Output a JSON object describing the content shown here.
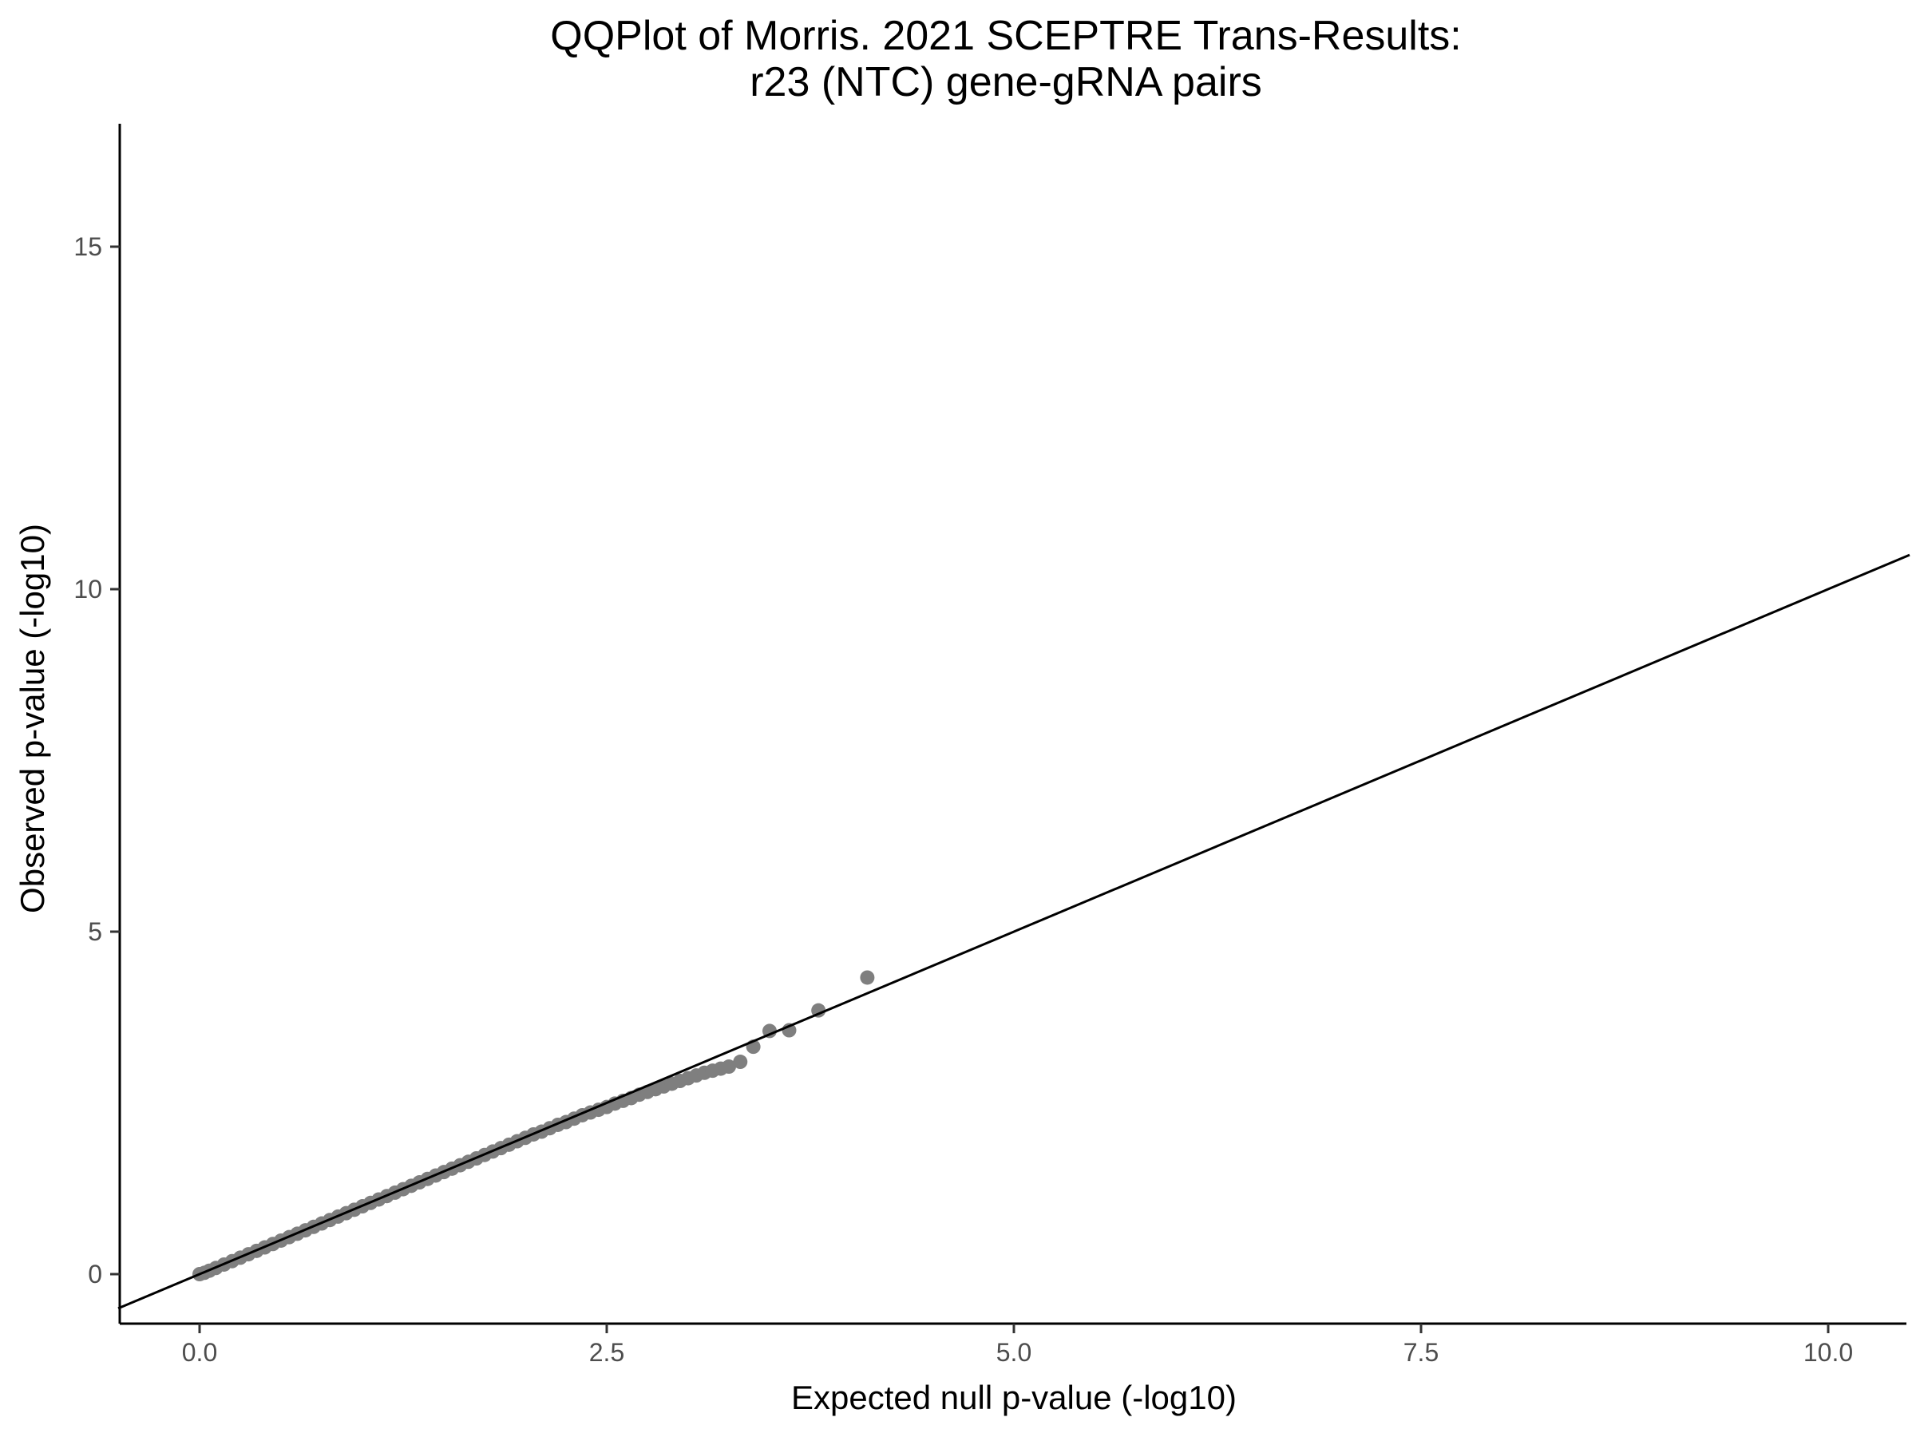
{
  "chart_data": {
    "type": "scatter",
    "title": "QQPlot of Morris. 2021 SCEPTRE Trans-Results:",
    "subtitle": "r23 (NTC) gene-gRNA pairs",
    "xlabel": "Expected null p-value (-log10)",
    "ylabel": "Observed p-value (-log10)",
    "xlim": [
      -0.5,
      10.5
    ],
    "ylim": [
      -0.6,
      16.8
    ],
    "x_ticks": [
      {
        "value": 0.0,
        "label": "0.0"
      },
      {
        "value": 2.5,
        "label": "2.5"
      },
      {
        "value": 5.0,
        "label": "5.0"
      },
      {
        "value": 7.5,
        "label": "7.5"
      },
      {
        "value": 10.0,
        "label": "10.0"
      }
    ],
    "y_ticks": [
      {
        "value": 0,
        "label": "0"
      },
      {
        "value": 5,
        "label": "5"
      },
      {
        "value": 10,
        "label": "10"
      },
      {
        "value": 15,
        "label": "15"
      }
    ],
    "reference_line": {
      "slope": 1,
      "intercept": 0,
      "color": "#000000"
    },
    "point_color": "#7f7f7f",
    "grid": false,
    "points": [
      {
        "x": 0.0,
        "y": 0.0
      },
      {
        "x": 0.03,
        "y": 0.02
      },
      {
        "x": 0.06,
        "y": 0.05
      },
      {
        "x": 0.1,
        "y": 0.09
      },
      {
        "x": 0.15,
        "y": 0.14
      },
      {
        "x": 0.2,
        "y": 0.19
      },
      {
        "x": 0.25,
        "y": 0.24
      },
      {
        "x": 0.3,
        "y": 0.29
      },
      {
        "x": 0.35,
        "y": 0.34
      },
      {
        "x": 0.4,
        "y": 0.39
      },
      {
        "x": 0.45,
        "y": 0.44
      },
      {
        "x": 0.5,
        "y": 0.49
      },
      {
        "x": 0.55,
        "y": 0.54
      },
      {
        "x": 0.6,
        "y": 0.59
      },
      {
        "x": 0.65,
        "y": 0.64
      },
      {
        "x": 0.7,
        "y": 0.69
      },
      {
        "x": 0.75,
        "y": 0.74
      },
      {
        "x": 0.8,
        "y": 0.79
      },
      {
        "x": 0.85,
        "y": 0.84
      },
      {
        "x": 0.9,
        "y": 0.89
      },
      {
        "x": 0.95,
        "y": 0.94
      },
      {
        "x": 1.0,
        "y": 0.99
      },
      {
        "x": 1.05,
        "y": 1.04
      },
      {
        "x": 1.1,
        "y": 1.09
      },
      {
        "x": 1.15,
        "y": 1.14
      },
      {
        "x": 1.2,
        "y": 1.19
      },
      {
        "x": 1.25,
        "y": 1.24
      },
      {
        "x": 1.3,
        "y": 1.29
      },
      {
        "x": 1.35,
        "y": 1.34
      },
      {
        "x": 1.4,
        "y": 1.39
      },
      {
        "x": 1.45,
        "y": 1.44
      },
      {
        "x": 1.5,
        "y": 1.49
      },
      {
        "x": 1.55,
        "y": 1.54
      },
      {
        "x": 1.6,
        "y": 1.59
      },
      {
        "x": 1.65,
        "y": 1.64
      },
      {
        "x": 1.7,
        "y": 1.69
      },
      {
        "x": 1.75,
        "y": 1.74
      },
      {
        "x": 1.8,
        "y": 1.79
      },
      {
        "x": 1.85,
        "y": 1.84
      },
      {
        "x": 1.9,
        "y": 1.89
      },
      {
        "x": 1.95,
        "y": 1.94
      },
      {
        "x": 2.0,
        "y": 1.99
      },
      {
        "x": 2.05,
        "y": 2.04
      },
      {
        "x": 2.1,
        "y": 2.08
      },
      {
        "x": 2.15,
        "y": 2.13
      },
      {
        "x": 2.2,
        "y": 2.18
      },
      {
        "x": 2.25,
        "y": 2.22
      },
      {
        "x": 2.3,
        "y": 2.27
      },
      {
        "x": 2.35,
        "y": 2.32
      },
      {
        "x": 2.4,
        "y": 2.36
      },
      {
        "x": 2.45,
        "y": 2.4
      },
      {
        "x": 2.5,
        "y": 2.44
      },
      {
        "x": 2.55,
        "y": 2.49
      },
      {
        "x": 2.6,
        "y": 2.53
      },
      {
        "x": 2.65,
        "y": 2.57
      },
      {
        "x": 2.7,
        "y": 2.62
      },
      {
        "x": 2.75,
        "y": 2.66
      },
      {
        "x": 2.8,
        "y": 2.7
      },
      {
        "x": 2.85,
        "y": 2.74
      },
      {
        "x": 2.9,
        "y": 2.78
      },
      {
        "x": 2.95,
        "y": 2.82
      },
      {
        "x": 3.0,
        "y": 2.86
      },
      {
        "x": 3.05,
        "y": 2.9
      },
      {
        "x": 3.1,
        "y": 2.94
      },
      {
        "x": 3.15,
        "y": 2.97
      },
      {
        "x": 3.2,
        "y": 3.0
      },
      {
        "x": 3.25,
        "y": 3.03
      },
      {
        "x": 3.32,
        "y": 3.1
      },
      {
        "x": 3.4,
        "y": 3.32
      },
      {
        "x": 3.5,
        "y": 3.55
      },
      {
        "x": 3.62,
        "y": 3.56
      },
      {
        "x": 3.8,
        "y": 3.85
      },
      {
        "x": 4.1,
        "y": 4.33
      }
    ]
  }
}
